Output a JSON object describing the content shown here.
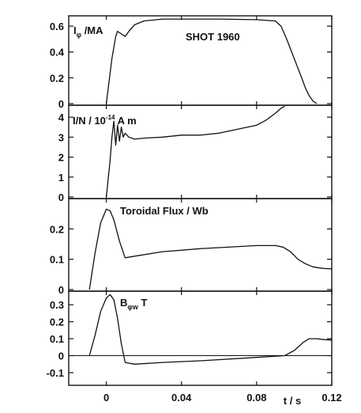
{
  "chart_data": [
    {
      "type": "line",
      "panel": "plasma-current",
      "label_main": "I",
      "label_sub": "φ",
      "label_rest": " /MA",
      "annotation": "SHOT 1960",
      "ylim": [
        0,
        0.68
      ],
      "yticks": [
        0,
        0.2,
        0.4,
        0.6
      ],
      "ytick_labels": [
        "0",
        "0.2",
        "0.4",
        "0.6"
      ],
      "x": [
        0.0,
        0.003,
        0.005,
        0.006,
        0.008,
        0.01,
        0.012,
        0.015,
        0.02,
        0.03,
        0.04,
        0.06,
        0.08,
        0.09,
        0.093,
        0.096,
        0.1,
        0.104,
        0.106,
        0.108,
        0.11,
        0.112
      ],
      "y": [
        0.0,
        0.35,
        0.52,
        0.56,
        0.54,
        0.52,
        0.56,
        0.61,
        0.64,
        0.655,
        0.655,
        0.655,
        0.65,
        0.64,
        0.6,
        0.5,
        0.35,
        0.2,
        0.12,
        0.06,
        0.02,
        0.0
      ]
    },
    {
      "type": "line",
      "panel": "current-per-density",
      "label_main": "I/N / 10",
      "label_sup": "-14",
      "label_rest": " A m",
      "ylim": [
        0,
        4.6
      ],
      "yticks": [
        0,
        1,
        2,
        3,
        4
      ],
      "ytick_labels": [
        "0",
        "1",
        "2",
        "3",
        "4"
      ],
      "x": [
        0.0,
        0.002,
        0.003,
        0.004,
        0.005,
        0.006,
        0.007,
        0.008,
        0.009,
        0.01,
        0.012,
        0.015,
        0.02,
        0.03,
        0.04,
        0.05,
        0.06,
        0.07,
        0.075,
        0.08,
        0.085,
        0.09,
        0.093,
        0.095
      ],
      "y": [
        0.0,
        1.8,
        3.0,
        3.8,
        2.6,
        3.6,
        2.8,
        3.5,
        3.0,
        3.2,
        3.0,
        2.9,
        2.95,
        3.0,
        3.1,
        3.1,
        3.2,
        3.4,
        3.5,
        3.6,
        3.85,
        4.2,
        4.45,
        4.55
      ]
    },
    {
      "type": "line",
      "panel": "toroidal-flux",
      "label_main": "Toroidal Flux / Wb",
      "ylim": [
        0,
        0.3
      ],
      "yticks": [
        0,
        0.1,
        0.2
      ],
      "ytick_labels": [
        "0",
        "0.1",
        "0.2"
      ],
      "x": [
        -0.009,
        -0.006,
        -0.003,
        0.0,
        0.002,
        0.004,
        0.007,
        0.01,
        0.015,
        0.03,
        0.05,
        0.08,
        0.09,
        0.094,
        0.098,
        0.102,
        0.106,
        0.11,
        0.115,
        0.12
      ],
      "y": [
        0.0,
        0.12,
        0.22,
        0.265,
        0.26,
        0.23,
        0.16,
        0.105,
        0.11,
        0.125,
        0.135,
        0.145,
        0.145,
        0.14,
        0.125,
        0.1,
        0.085,
        0.075,
        0.07,
        0.068
      ]
    },
    {
      "type": "line",
      "panel": "vacuum-field",
      "label_main": "B",
      "label_sub": "φw",
      "label_rest": "  T",
      "ylim": [
        -0.1,
        0.38
      ],
      "yticks": [
        -0.1,
        0,
        0.1,
        0.2,
        0.3
      ],
      "ytick_labels": [
        "-0.1",
        "0",
        "0.1",
        "0.2",
        "0.3"
      ],
      "zero_line": true,
      "x": [
        -0.009,
        -0.006,
        -0.003,
        0.0,
        0.002,
        0.004,
        0.006,
        0.008,
        0.01,
        0.015,
        0.03,
        0.05,
        0.08,
        0.095,
        0.1,
        0.105,
        0.108,
        0.112,
        0.116,
        0.12
      ],
      "y": [
        0.0,
        0.12,
        0.26,
        0.34,
        0.36,
        0.33,
        0.22,
        0.07,
        -0.04,
        -0.05,
        -0.04,
        -0.03,
        -0.01,
        0.0,
        0.03,
        0.08,
        0.1,
        0.1,
        0.095,
        0.092
      ]
    }
  ],
  "x_axis": {
    "xlim": [
      -0.02,
      0.12
    ],
    "ticks": [
      0,
      0.04,
      0.08,
      0.12
    ],
    "tick_labels": [
      "0",
      "0.04",
      "0.08",
      "0.12"
    ],
    "label": "t / s"
  }
}
